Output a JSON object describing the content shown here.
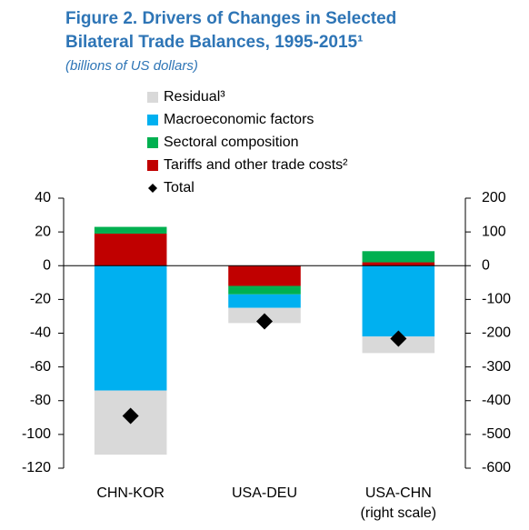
{
  "chart_data": {
    "type": "stacked_bar_dual_axis",
    "title": "Figure 2. Drivers of Changes in Selected Bilateral Trade Balances, 1995-2015¹",
    "subtitle": "(billions of US dollars)",
    "categories": [
      "CHN-KOR",
      "USA-DEU",
      "USA-CHN (right scale)"
    ],
    "category_axis": [
      "y",
      "y",
      "y2"
    ],
    "series": [
      {
        "name": "Residual³",
        "color": "#d9d9d9",
        "values": [
          -38,
          -9,
          -49
        ]
      },
      {
        "name": "Macroeconomic factors",
        "color": "#00b0f0",
        "values": [
          -74,
          -8,
          -210
        ]
      },
      {
        "name": "Sectoral composition",
        "color": "#00b050",
        "values": [
          4,
          -5,
          33
        ]
      },
      {
        "name": "Tariffs and other trade costs²",
        "color": "#c00000",
        "values": [
          19,
          -12,
          10
        ]
      }
    ],
    "total": {
      "name": "Total",
      "color": "#000000",
      "values": [
        -89,
        -33,
        -216
      ]
    },
    "ylim": [
      -120,
      40
    ],
    "yticks": [
      40,
      20,
      0,
      -20,
      -40,
      -60,
      -80,
      -100,
      -120
    ],
    "y2lim": [
      -600,
      200
    ],
    "y2ticks": [
      200,
      100,
      0,
      -100,
      -200,
      -300,
      -400,
      -500,
      -600
    ]
  }
}
